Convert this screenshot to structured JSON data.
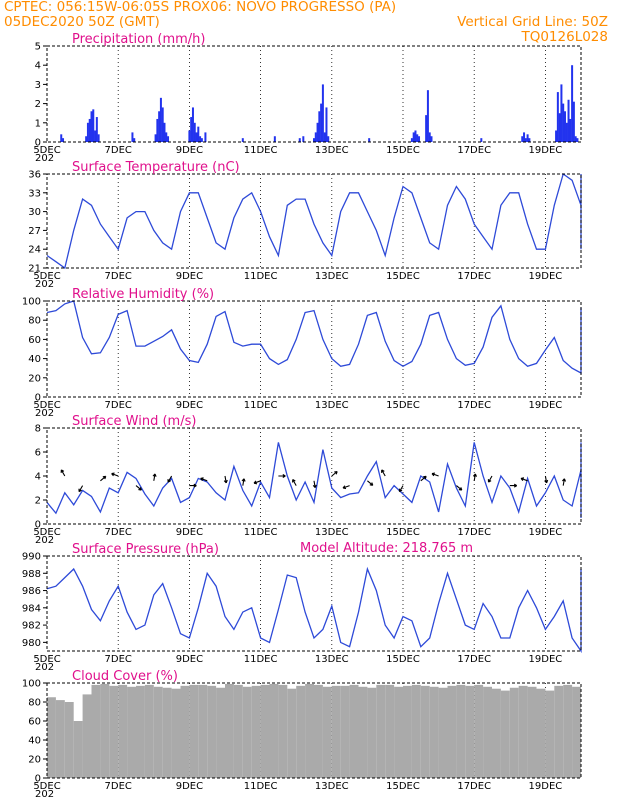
{
  "header": {
    "line1_left": "CPTEC:  056:15W-06:05S   PROX06: NOVO PROGRESSO (PA)",
    "line2_left": "05DEC2020 50Z (GMT)",
    "line2_right": "Vertical Grid Line: 50Z",
    "line3_right": "TQ0126L028"
  },
  "x_axis": {
    "day_start": 5,
    "day_end": 20,
    "tick_labels": [
      "5DEC",
      "7DEC",
      "9DEC",
      "11DEC",
      "13DEC",
      "15DEC",
      "17DEC",
      "19DEC"
    ],
    "year_stub": "202"
  },
  "annotations": {
    "model_altitude": "Model Altitude: 218.765  m"
  },
  "colors": {
    "header": "#ff8c00",
    "titles": "#e0108c",
    "series": "#2e4ad8",
    "precip": "#2233ee",
    "cloud": "#aaaaaa"
  },
  "chart_data": [
    {
      "type": "bar",
      "title": "Precipitation (mm/h)",
      "ylim": [
        0,
        5
      ],
      "yticks": [
        0,
        1,
        2,
        3,
        4,
        5
      ],
      "x_unit": "day of December 2020",
      "x": [
        5.4,
        5.45,
        6.1,
        6.15,
        6.2,
        6.25,
        6.3,
        6.35,
        6.4,
        6.45,
        7.4,
        7.45,
        8.05,
        8.1,
        8.15,
        8.2,
        8.25,
        8.3,
        8.35,
        8.4,
        9.0,
        9.05,
        9.1,
        9.15,
        9.2,
        9.25,
        9.3,
        9.35,
        9.45,
        10.5,
        11.4,
        12.1,
        12.2,
        12.5,
        12.55,
        12.6,
        12.65,
        12.7,
        12.75,
        12.8,
        12.85,
        12.9,
        14.05,
        15.25,
        15.3,
        15.35,
        15.4,
        15.45,
        15.65,
        15.7,
        15.75,
        15.8,
        17.2,
        18.35,
        18.4,
        18.45,
        18.5,
        18.55,
        19.3,
        19.35,
        19.4,
        19.45,
        19.5,
        19.55,
        19.6,
        19.65,
        19.7,
        19.75,
        19.8,
        19.85,
        19.9
      ],
      "values": [
        0.4,
        0.2,
        0.3,
        1.0,
        1.2,
        1.6,
        1.7,
        0.6,
        1.3,
        0.4,
        0.5,
        0.2,
        0.4,
        1.2,
        1.6,
        2.3,
        1.8,
        1.0,
        0.5,
        0.3,
        0.6,
        1.3,
        1.8,
        1.0,
        0.5,
        0.8,
        0.3,
        0.2,
        0.5,
        0.2,
        0.3,
        0.2,
        0.3,
        0.2,
        0.5,
        1.0,
        1.6,
        2.0,
        3.0,
        0.5,
        1.8,
        0.3,
        0.2,
        0.2,
        0.5,
        0.6,
        0.4,
        0.3,
        1.4,
        2.7,
        0.5,
        0.3,
        0.2,
        0.3,
        0.5,
        0.2,
        0.4,
        0.2,
        0.6,
        2.6,
        1.5,
        3.0,
        2.0,
        1.6,
        1.0,
        2.2,
        1.2,
        4.0,
        2.1,
        0.3,
        0.2
      ]
    },
    {
      "type": "line",
      "title": "Surface Temperature (nC)",
      "ylim": [
        21,
        36
      ],
      "yticks": [
        21,
        24,
        27,
        30,
        33,
        36
      ],
      "x_start": 5,
      "x_step": 0.25,
      "values": [
        23,
        22,
        21,
        27,
        32,
        31,
        28,
        26,
        24,
        29,
        30,
        30,
        27,
        25,
        24,
        30,
        33,
        33,
        29,
        25,
        24,
        29,
        32,
        33,
        30,
        26,
        23,
        31,
        32,
        32,
        28,
        25,
        23,
        30,
        33,
        33,
        30,
        27,
        23,
        29,
        34,
        33,
        29,
        25,
        24,
        31,
        34,
        32,
        28,
        26,
        24,
        31,
        33,
        33,
        28,
        24,
        24,
        31,
        36,
        35,
        31,
        24,
        25,
        33,
        36,
        34,
        29,
        24,
        24,
        31,
        33,
        33,
        30,
        25,
        24,
        33,
        35,
        33,
        29,
        25,
        24,
        32,
        35,
        35,
        30,
        25,
        24,
        30,
        30,
        29
      ]
    },
    {
      "type": "line",
      "title": "Relative Humidity (%)",
      "ylim": [
        0,
        100
      ],
      "yticks": [
        0,
        20,
        40,
        60,
        80,
        100
      ],
      "x_start": 5,
      "x_step": 0.25,
      "values": [
        88,
        90,
        97,
        100,
        62,
        45,
        46,
        62,
        86,
        90,
        53,
        53,
        58,
        63,
        70,
        50,
        38,
        36,
        55,
        84,
        89,
        57,
        53,
        55,
        55,
        40,
        34,
        39,
        60,
        88,
        90,
        60,
        40,
        32,
        34,
        55,
        85,
        88,
        58,
        38,
        32,
        37,
        55,
        85,
        88,
        60,
        40,
        33,
        35,
        52,
        83,
        95,
        60,
        40,
        32,
        35,
        49,
        62,
        38,
        30,
        25,
        35,
        62,
        75,
        45,
        30,
        26,
        30,
        45,
        80,
        87,
        65,
        45,
        35,
        35,
        52,
        92,
        93,
        65,
        40,
        32,
        35,
        50,
        85,
        87,
        60,
        40,
        30,
        32,
        45,
        88,
        60,
        55,
        58
      ]
    },
    {
      "type": "line",
      "title": "Surface Wind (m/s)",
      "ylim": [
        0,
        8
      ],
      "yticks": [
        0,
        2,
        4,
        6,
        8
      ],
      "x_start": 5,
      "x_step": 0.25,
      "values": [
        1.8,
        0.9,
        2.6,
        1.6,
        2.8,
        2.3,
        1.0,
        3.0,
        2.6,
        4.3,
        3.8,
        2.5,
        1.5,
        3.0,
        3.8,
        1.8,
        2.2,
        3.8,
        3.5,
        2.6,
        2.0,
        4.8,
        2.8,
        1.5,
        3.5,
        2.2,
        6.8,
        4.0,
        2.0,
        3.5,
        1.8,
        6.2,
        3.0,
        2.2,
        2.5,
        2.6,
        4.0,
        5.2,
        2.2,
        3.2,
        2.5,
        1.8,
        4.0,
        3.5,
        1.0,
        5.0,
        3.0,
        1.5,
        6.8,
        4.0,
        1.8,
        4.0,
        3.0,
        1.0,
        3.8,
        1.5,
        2.6,
        4.0,
        2.0,
        1.5,
        4.5,
        2.5,
        1.2,
        4.5,
        1.8,
        2.6,
        3.0,
        2.0,
        0.5,
        6.8,
        2.6,
        2.0,
        3.5,
        2.2,
        1.5,
        3.8,
        2.0,
        1.2,
        3.2,
        3.8,
        1.6,
        3.0,
        3.6,
        1.2
      ]
    },
    {
      "type": "line",
      "title": "Surface Pressure (hPa)",
      "ylim": [
        979,
        990
      ],
      "yticks": [
        980,
        982,
        984,
        986,
        988,
        990
      ],
      "x_start": 5,
      "x_step": 0.25,
      "values": [
        986.2,
        986.5,
        987.5,
        988.5,
        986.5,
        983.8,
        982.5,
        984.8,
        986.5,
        983.5,
        981.5,
        982.0,
        985.5,
        986.8,
        984.0,
        981.0,
        980.5,
        984.0,
        988.0,
        986.5,
        983.0,
        981.5,
        983.5,
        984.0,
        980.5,
        980.0,
        983.8,
        987.8,
        987.5,
        983.5,
        980.5,
        981.5,
        984.2,
        980.0,
        979.5,
        983.5,
        988.5,
        986.0,
        982.0,
        980.5,
        983.0,
        982.5,
        979.5,
        980.5,
        984.5,
        988.0,
        985.0,
        982.0,
        981.5,
        984.5,
        983.0,
        980.5,
        980.5,
        984.0,
        986.0,
        984.0,
        981.5,
        983.0,
        984.8,
        980.5,
        979.0,
        983.0,
        986.5,
        983.2,
        980.8,
        982.0,
        985.8,
        981.5,
        979.5,
        983.5,
        988.2,
        986.5,
        982.5,
        981.0,
        983.5,
        984.0,
        980.0,
        979.5,
        983.0,
        988.5,
        986.0,
        981.5,
        982.0,
        984.0,
        979.8,
        979.0,
        983.0,
        986.5,
        984.5,
        981.5,
        980.5,
        982.5
      ]
    },
    {
      "type": "bar",
      "title": "Cloud Cover (%)",
      "ylim": [
        0,
        100
      ],
      "yticks": [
        0,
        20,
        40,
        60,
        80,
        100
      ],
      "x_start": 5,
      "x_step": 0.25,
      "values": [
        85,
        82,
        80,
        60,
        88,
        98,
        99,
        97,
        98,
        96,
        97,
        98,
        96,
        95,
        94,
        97,
        98,
        98,
        97,
        95,
        99,
        98,
        96,
        97,
        98,
        99,
        98,
        94,
        97,
        99,
        98,
        96,
        97,
        97,
        98,
        96,
        95,
        98,
        98,
        96,
        97,
        98,
        97,
        96,
        95,
        97,
        98,
        97,
        98,
        96,
        94,
        92,
        95,
        97,
        96,
        94,
        92,
        97,
        98,
        96,
        95,
        97,
        98,
        93,
        96,
        97,
        95,
        94,
        96,
        98,
        97,
        96,
        93,
        95,
        97,
        98,
        96,
        95,
        97,
        92,
        94,
        96,
        97,
        90,
        95,
        97,
        93,
        96,
        94,
        97
      ]
    }
  ]
}
